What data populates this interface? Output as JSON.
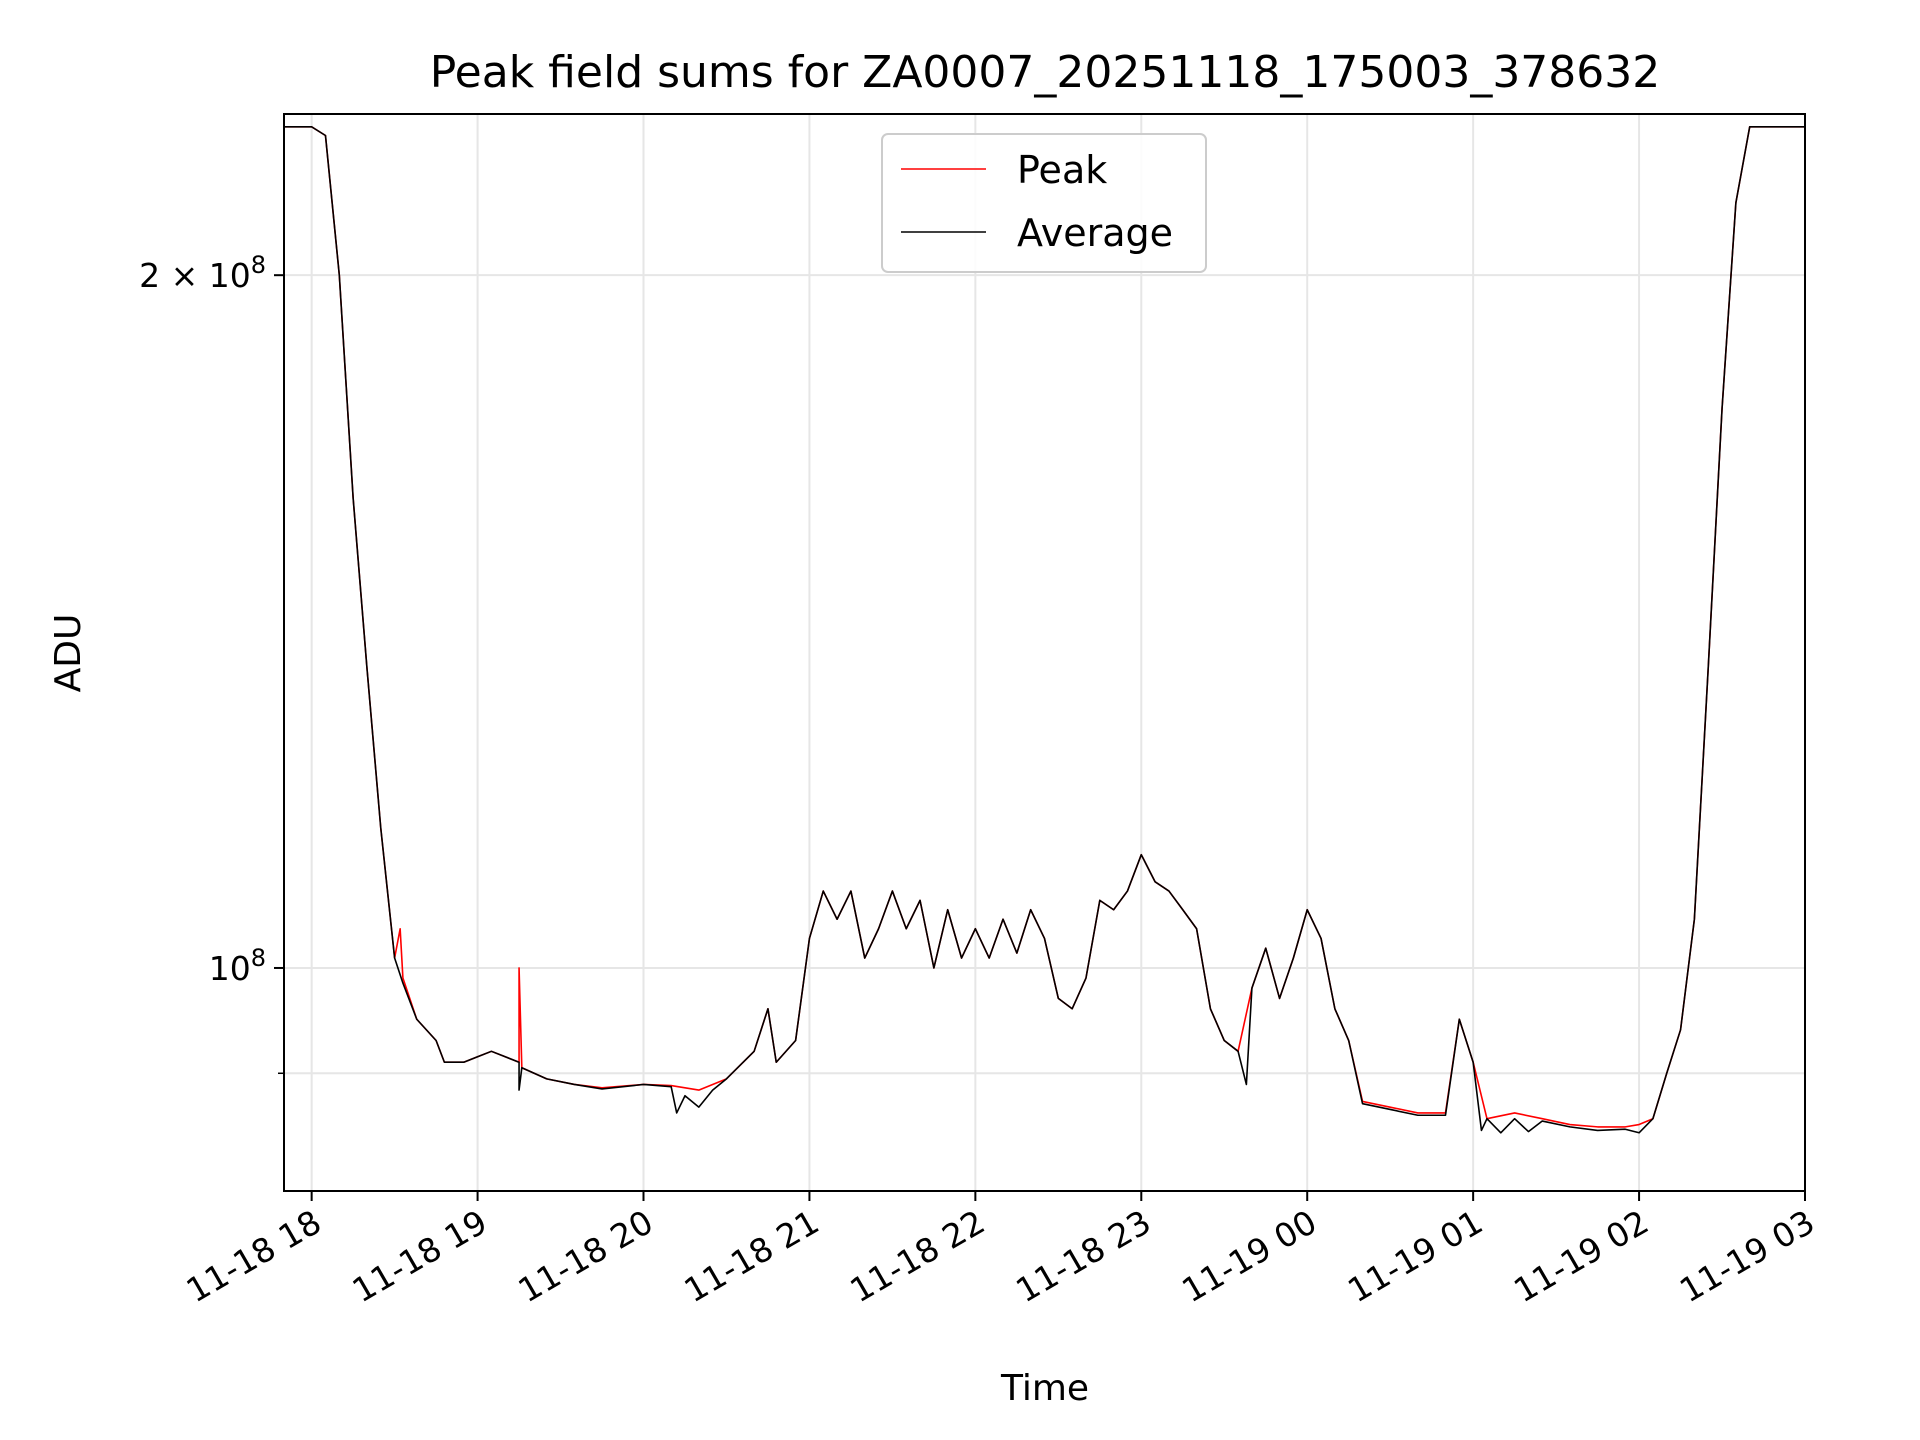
{
  "chart_data": {
    "type": "line",
    "title": "Peak field sums for ZA0007_20251118_175003_378632",
    "xlabel": "Time",
    "ylabel": "ADU",
    "x_tick_labels": [
      "11-18 18",
      "11-18 19",
      "11-18 20",
      "11-18 21",
      "11-18 22",
      "11-18 23",
      "11-19 00",
      "11-19 01",
      "11-19 02",
      "11-19 03"
    ],
    "x_ticks": [
      "2025-11-18 18:00",
      "2025-11-18 19:00",
      "2025-11-18 20:00",
      "2025-11-18 21:00",
      "2025-11-18 22:00",
      "2025-11-18 23:00",
      "2025-11-19 00:00",
      "2025-11-19 01:00",
      "2025-11-19 02:00",
      "2025-11-19 03:00"
    ],
    "xlim": [
      "2025-11-18 17:50",
      "2025-11-19 03:00"
    ],
    "y_scale": "log",
    "ylim": [
      80000000,
      235000000
    ],
    "y_ticks_major": [
      {
        "value": 100000000,
        "label_base": "10",
        "label_exp": "8"
      },
      {
        "value": 200000000,
        "label_base": "2 × 10",
        "label_exp": "8"
      }
    ],
    "y_ticks_minor": [
      90000000
    ],
    "grid": true,
    "legend_placement": "upper center",
    "series": [
      {
        "name": "Peak",
        "color": "#ff0000",
        "points": [
          [
            "2025-11-18 17:50",
            232000000
          ],
          [
            "2025-11-18 18:00",
            232000000
          ],
          [
            "2025-11-18 18:05",
            230000000
          ],
          [
            "2025-11-18 18:10",
            200000000
          ],
          [
            "2025-11-18 18:15",
            160000000
          ],
          [
            "2025-11-18 18:20",
            135000000
          ],
          [
            "2025-11-18 18:25",
            115000000
          ],
          [
            "2025-11-18 18:30",
            101000000
          ],
          [
            "2025-11-18 18:32",
            104000000
          ],
          [
            "2025-11-18 18:33",
            99000000
          ],
          [
            "2025-11-18 18:38",
            95000000
          ],
          [
            "2025-11-18 18:45",
            93000000
          ],
          [
            "2025-11-18 18:48",
            91000000
          ],
          [
            "2025-11-18 18:55",
            91000000
          ],
          [
            "2025-11-18 19:00",
            91500000
          ],
          [
            "2025-11-18 19:05",
            92000000
          ],
          [
            "2025-11-18 19:10",
            91500000
          ],
          [
            "2025-11-18 19:15",
            91000000
          ],
          [
            "2025-11-18 19:15",
            100000000
          ],
          [
            "2025-11-18 19:16",
            90500000
          ],
          [
            "2025-11-18 19:25",
            89500000
          ],
          [
            "2025-11-18 19:35",
            89000000
          ],
          [
            "2025-11-18 19:45",
            88700000
          ],
          [
            "2025-11-18 20:00",
            89000000
          ],
          [
            "2025-11-18 20:10",
            88900000
          ],
          [
            "2025-11-18 20:20",
            88500000
          ],
          [
            "2025-11-18 20:30",
            89500000
          ],
          [
            "2025-11-18 20:40",
            92000000
          ],
          [
            "2025-11-18 20:45",
            96000000
          ],
          [
            "2025-11-18 20:48",
            91000000
          ],
          [
            "2025-11-18 20:55",
            93000000
          ],
          [
            "2025-11-18 21:00",
            103000000
          ],
          [
            "2025-11-18 21:05",
            108000000
          ],
          [
            "2025-11-18 21:10",
            105000000
          ],
          [
            "2025-11-18 21:15",
            108000000
          ],
          [
            "2025-11-18 21:20",
            101000000
          ],
          [
            "2025-11-18 21:25",
            104000000
          ],
          [
            "2025-11-18 21:30",
            108000000
          ],
          [
            "2025-11-18 21:35",
            104000000
          ],
          [
            "2025-11-18 21:40",
            107000000
          ],
          [
            "2025-11-18 21:45",
            100000000
          ],
          [
            "2025-11-18 21:50",
            106000000
          ],
          [
            "2025-11-18 21:55",
            101000000
          ],
          [
            "2025-11-18 22:00",
            104000000
          ],
          [
            "2025-11-18 22:05",
            101000000
          ],
          [
            "2025-11-18 22:10",
            105000000
          ],
          [
            "2025-11-18 22:15",
            101500000
          ],
          [
            "2025-11-18 22:20",
            106000000
          ],
          [
            "2025-11-18 22:25",
            103000000
          ],
          [
            "2025-11-18 22:30",
            97000000
          ],
          [
            "2025-11-18 22:35",
            96000000
          ],
          [
            "2025-11-18 22:40",
            99000000
          ],
          [
            "2025-11-18 22:45",
            107000000
          ],
          [
            "2025-11-18 22:50",
            106000000
          ],
          [
            "2025-11-18 22:55",
            108000000
          ],
          [
            "2025-11-18 23:00",
            112000000
          ],
          [
            "2025-11-18 23:05",
            109000000
          ],
          [
            "2025-11-18 23:10",
            108000000
          ],
          [
            "2025-11-18 23:15",
            106000000
          ],
          [
            "2025-11-18 23:20",
            104000000
          ],
          [
            "2025-11-18 23:25",
            96000000
          ],
          [
            "2025-11-18 23:30",
            93000000
          ],
          [
            "2025-11-18 23:35",
            92000000
          ],
          [
            "2025-11-18 23:40",
            98000000
          ],
          [
            "2025-11-18 23:45",
            102000000
          ],
          [
            "2025-11-18 23:50",
            97000000
          ],
          [
            "2025-11-18 23:55",
            101000000
          ],
          [
            "2025-11-19 00:00",
            106000000
          ],
          [
            "2025-11-19 00:05",
            103000000
          ],
          [
            "2025-11-19 00:10",
            96000000
          ],
          [
            "2025-11-19 00:15",
            93000000
          ],
          [
            "2025-11-19 00:20",
            87500000
          ],
          [
            "2025-11-19 00:30",
            87000000
          ],
          [
            "2025-11-19 00:40",
            86500000
          ],
          [
            "2025-11-19 00:50",
            86500000
          ],
          [
            "2025-11-19 00:55",
            95000000
          ],
          [
            "2025-11-19 01:00",
            91000000
          ],
          [
            "2025-11-19 01:05",
            86000000
          ],
          [
            "2025-11-19 01:15",
            86500000
          ],
          [
            "2025-11-19 01:25",
            86000000
          ],
          [
            "2025-11-19 01:35",
            85500000
          ],
          [
            "2025-11-19 01:45",
            85300000
          ],
          [
            "2025-11-19 01:55",
            85300000
          ],
          [
            "2025-11-19 02:00",
            85500000
          ],
          [
            "2025-11-19 02:05",
            86000000
          ],
          [
            "2025-11-19 02:10",
            90000000
          ],
          [
            "2025-11-19 02:15",
            94000000
          ],
          [
            "2025-11-19 02:20",
            105000000
          ],
          [
            "2025-11-19 02:25",
            135000000
          ],
          [
            "2025-11-19 02:30",
            175000000
          ],
          [
            "2025-11-19 02:35",
            215000000
          ],
          [
            "2025-11-19 02:40",
            232000000
          ],
          [
            "2025-11-19 03:00",
            232000000
          ]
        ]
      },
      {
        "name": "Average",
        "color": "#000000",
        "points": [
          [
            "2025-11-18 17:50",
            232000000
          ],
          [
            "2025-11-18 18:00",
            232000000
          ],
          [
            "2025-11-18 18:05",
            230000000
          ],
          [
            "2025-11-18 18:10",
            200000000
          ],
          [
            "2025-11-18 18:15",
            160000000
          ],
          [
            "2025-11-18 18:20",
            135000000
          ],
          [
            "2025-11-18 18:25",
            115000000
          ],
          [
            "2025-11-18 18:30",
            101000000
          ],
          [
            "2025-11-18 18:33",
            98500000
          ],
          [
            "2025-11-18 18:38",
            95000000
          ],
          [
            "2025-11-18 18:45",
            93000000
          ],
          [
            "2025-11-18 18:48",
            91000000
          ],
          [
            "2025-11-18 18:55",
            91000000
          ],
          [
            "2025-11-18 19:00",
            91500000
          ],
          [
            "2025-11-18 19:05",
            92000000
          ],
          [
            "2025-11-18 19:10",
            91500000
          ],
          [
            "2025-11-18 19:15",
            91000000
          ],
          [
            "2025-11-18 19:15",
            88500000
          ],
          [
            "2025-11-18 19:16",
            90500000
          ],
          [
            "2025-11-18 19:25",
            89500000
          ],
          [
            "2025-11-18 19:35",
            89000000
          ],
          [
            "2025-11-18 19:45",
            88600000
          ],
          [
            "2025-11-18 20:00",
            89000000
          ],
          [
            "2025-11-18 20:10",
            88800000
          ],
          [
            "2025-11-18 20:12",
            86500000
          ],
          [
            "2025-11-18 20:15",
            88000000
          ],
          [
            "2025-11-18 20:20",
            87000000
          ],
          [
            "2025-11-18 20:25",
            88500000
          ],
          [
            "2025-11-18 20:30",
            89500000
          ],
          [
            "2025-11-18 20:40",
            92000000
          ],
          [
            "2025-11-18 20:45",
            96000000
          ],
          [
            "2025-11-18 20:48",
            91000000
          ],
          [
            "2025-11-18 20:55",
            93000000
          ],
          [
            "2025-11-18 21:00",
            103000000
          ],
          [
            "2025-11-18 21:05",
            108000000
          ],
          [
            "2025-11-18 21:10",
            105000000
          ],
          [
            "2025-11-18 21:15",
            108000000
          ],
          [
            "2025-11-18 21:20",
            101000000
          ],
          [
            "2025-11-18 21:25",
            104000000
          ],
          [
            "2025-11-18 21:30",
            108000000
          ],
          [
            "2025-11-18 21:35",
            104000000
          ],
          [
            "2025-11-18 21:40",
            107000000
          ],
          [
            "2025-11-18 21:45",
            100000000
          ],
          [
            "2025-11-18 21:50",
            106000000
          ],
          [
            "2025-11-18 21:55",
            101000000
          ],
          [
            "2025-11-18 22:00",
            104000000
          ],
          [
            "2025-11-18 22:05",
            101000000
          ],
          [
            "2025-11-18 22:10",
            105000000
          ],
          [
            "2025-11-18 22:15",
            101500000
          ],
          [
            "2025-11-18 22:20",
            106000000
          ],
          [
            "2025-11-18 22:25",
            103000000
          ],
          [
            "2025-11-18 22:30",
            97000000
          ],
          [
            "2025-11-18 22:35",
            96000000
          ],
          [
            "2025-11-18 22:40",
            99000000
          ],
          [
            "2025-11-18 22:45",
            107000000
          ],
          [
            "2025-11-18 22:50",
            106000000
          ],
          [
            "2025-11-18 22:55",
            108000000
          ],
          [
            "2025-11-18 23:00",
            112000000
          ],
          [
            "2025-11-18 23:05",
            109000000
          ],
          [
            "2025-11-18 23:10",
            108000000
          ],
          [
            "2025-11-18 23:15",
            106000000
          ],
          [
            "2025-11-18 23:20",
            104000000
          ],
          [
            "2025-11-18 23:25",
            96000000
          ],
          [
            "2025-11-18 23:30",
            93000000
          ],
          [
            "2025-11-18 23:35",
            92000000
          ],
          [
            "2025-11-18 23:38",
            89000000
          ],
          [
            "2025-11-18 23:40",
            98000000
          ],
          [
            "2025-11-18 23:45",
            102000000
          ],
          [
            "2025-11-18 23:50",
            97000000
          ],
          [
            "2025-11-18 23:55",
            101000000
          ],
          [
            "2025-11-19 00:00",
            106000000
          ],
          [
            "2025-11-19 00:05",
            103000000
          ],
          [
            "2025-11-19 00:10",
            96000000
          ],
          [
            "2025-11-19 00:15",
            93000000
          ],
          [
            "2025-11-19 00:20",
            87300000
          ],
          [
            "2025-11-19 00:30",
            86800000
          ],
          [
            "2025-11-19 00:40",
            86300000
          ],
          [
            "2025-11-19 00:50",
            86300000
          ],
          [
            "2025-11-19 00:55",
            95000000
          ],
          [
            "2025-11-19 01:00",
            91000000
          ],
          [
            "2025-11-19 01:03",
            85000000
          ],
          [
            "2025-11-19 01:05",
            86000000
          ],
          [
            "2025-11-19 01:10",
            84800000
          ],
          [
            "2025-11-19 01:15",
            86000000
          ],
          [
            "2025-11-19 01:20",
            84900000
          ],
          [
            "2025-11-19 01:25",
            85800000
          ],
          [
            "2025-11-19 01:35",
            85300000
          ],
          [
            "2025-11-19 01:45",
            85000000
          ],
          [
            "2025-11-19 01:55",
            85100000
          ],
          [
            "2025-11-19 02:00",
            84800000
          ],
          [
            "2025-11-19 02:05",
            86000000
          ],
          [
            "2025-11-19 02:10",
            90000000
          ],
          [
            "2025-11-19 02:15",
            94000000
          ],
          [
            "2025-11-19 02:20",
            105000000
          ],
          [
            "2025-11-19 02:25",
            135000000
          ],
          [
            "2025-11-19 02:30",
            175000000
          ],
          [
            "2025-11-19 02:35",
            215000000
          ],
          [
            "2025-11-19 02:40",
            232000000
          ],
          [
            "2025-11-19 03:00",
            232000000
          ]
        ]
      }
    ]
  }
}
